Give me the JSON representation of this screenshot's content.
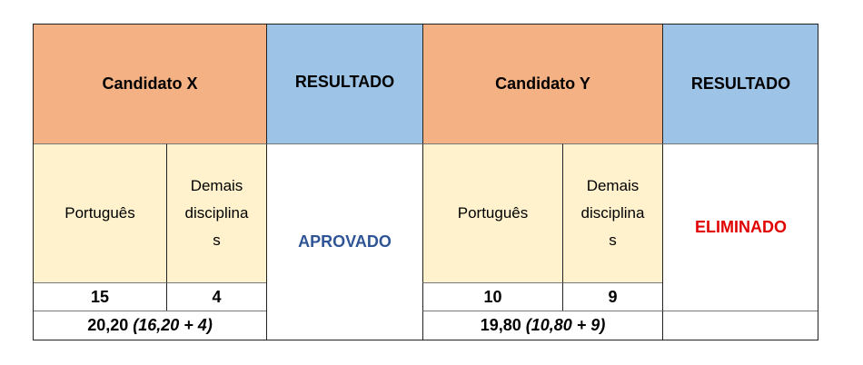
{
  "headers": {
    "candidate_x": "Candidato X",
    "result_1": "RESULTADO",
    "candidate_y": "Candidato Y",
    "result_2": "RESULTADO"
  },
  "subheaders": {
    "portuguese": "Português",
    "others": "Demais disciplina s"
  },
  "candidate_x": {
    "portuguese": "15",
    "others": "4",
    "total": "20,20",
    "formula": "(16,20 + 4)",
    "result": "APROVADO"
  },
  "candidate_y": {
    "portuguese": "10",
    "others": "9",
    "total": "19,80",
    "formula": "(10,80 + 9)",
    "result": "ELIMINADO"
  },
  "colors": {
    "header_candidate": "#F4B183",
    "header_result": "#9DC3E6",
    "subheader": "#FFF2CC",
    "approved": "#2F5597",
    "eliminated": "#E00000"
  }
}
